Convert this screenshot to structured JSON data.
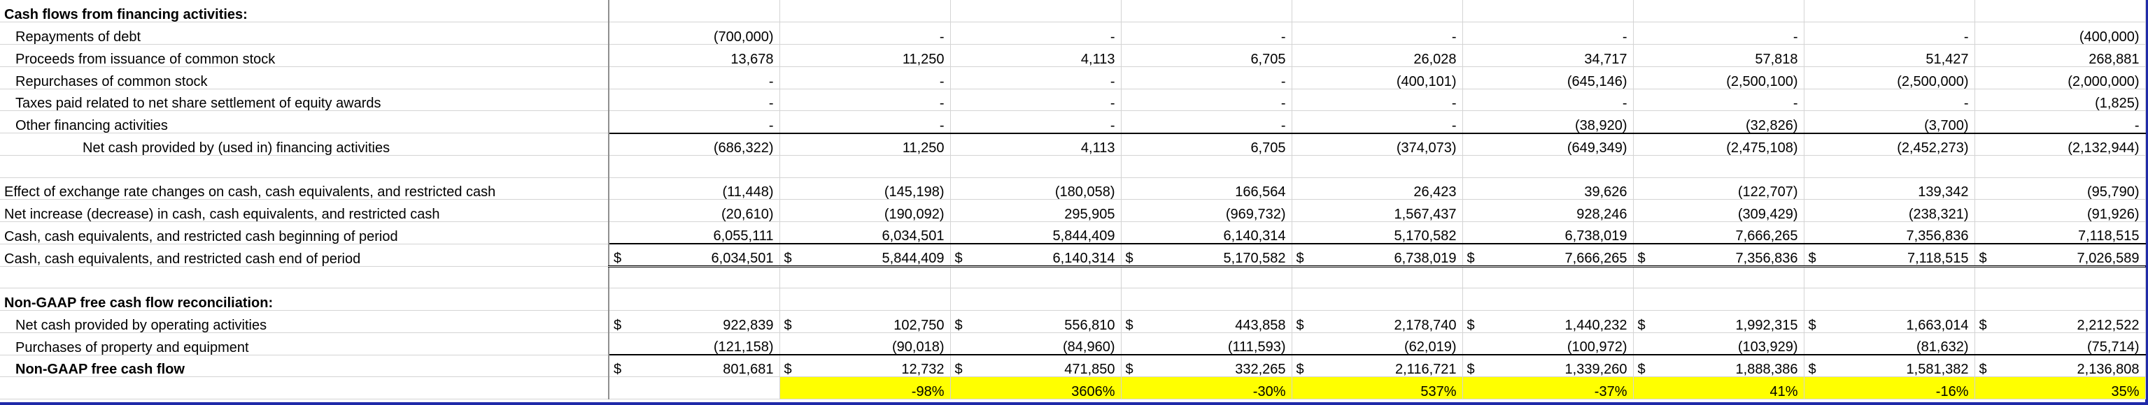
{
  "highlight_color": "#ffff00",
  "rows": [
    {
      "label": "Cash flows from financing activities:",
      "style": "bold",
      "values": []
    },
    {
      "label": "Repayments of debt",
      "style": "ind1",
      "values": [
        "(700,000)",
        "-",
        "-",
        "-",
        "-",
        "-",
        "-",
        "-",
        "(400,000)"
      ]
    },
    {
      "label": "Proceeds from issuance of common stock",
      "style": "ind1",
      "values": [
        "13,678",
        "11,250",
        "4,113",
        "6,705",
        "26,028",
        "34,717",
        "57,818",
        "51,427",
        "268,881"
      ]
    },
    {
      "label": "Repurchases of common stock",
      "style": "ind1",
      "values": [
        "-",
        "-",
        "-",
        "-",
        "(400,101)",
        "(645,146)",
        "(2,500,100)",
        "(2,500,000)",
        "(2,000,000)"
      ]
    },
    {
      "label": "Taxes paid related to net share settlement of equity awards",
      "style": "ind1",
      "values": [
        "-",
        "-",
        "-",
        "-",
        "-",
        "-",
        "-",
        "-",
        "(1,825)"
      ]
    },
    {
      "label": "Other financing activities",
      "style": "ind1",
      "values": [
        "-",
        "-",
        "-",
        "-",
        "-",
        "(38,920)",
        "(32,826)",
        "(3,700)",
        "-"
      ]
    },
    {
      "label": "Net cash provided by (used in) financing activities",
      "style": "ind2",
      "rule": "top",
      "values": [
        "(686,322)",
        "11,250",
        "4,113",
        "6,705",
        "(374,073)",
        "(649,349)",
        "(2,475,108)",
        "(2,452,273)",
        "(2,132,944)"
      ]
    },
    {
      "label": "",
      "style": "blank",
      "values": []
    },
    {
      "label": "Effect of exchange rate changes on cash, cash equivalents, and restricted cash",
      "style": "plain",
      "values": [
        "(11,448)",
        "(145,198)",
        "(180,058)",
        "166,564",
        "26,423",
        "39,626",
        "(122,707)",
        "139,342",
        "(95,790)"
      ]
    },
    {
      "label": "Net increase (decrease) in cash, cash equivalents, and restricted cash",
      "style": "plain",
      "values": [
        "(20,610)",
        "(190,092)",
        "295,905",
        "(969,732)",
        "1,567,437",
        "928,246",
        "(309,429)",
        "(238,321)",
        "(91,926)"
      ]
    },
    {
      "label": "Cash, cash equivalents, and restricted cash beginning of period",
      "style": "plain",
      "values": [
        "6,055,111",
        "6,034,501",
        "5,844,409",
        "6,140,314",
        "5,170,582",
        "6,738,019",
        "7,666,265",
        "7,356,836",
        "7,118,515"
      ]
    },
    {
      "label": "Cash, cash equivalents, and restricted cash end of period",
      "style": "plain",
      "rule": "both",
      "symbols": [
        "$",
        "$",
        "$",
        "$",
        "$",
        "$",
        "$",
        "$",
        "$"
      ],
      "values": [
        "6,034,501",
        "5,844,409",
        "6,140,314",
        "5,170,582",
        "6,738,019",
        "7,666,265",
        "7,356,836",
        "7,118,515",
        "7,026,589"
      ]
    },
    {
      "label": "",
      "style": "blank",
      "values": []
    },
    {
      "label": "Non-GAAP free cash flow reconciliation:",
      "style": "bold",
      "values": []
    },
    {
      "label": "Net cash provided by operating activities",
      "style": "ind1",
      "symbols": [
        "$",
        "$",
        "$",
        "$",
        "$",
        "$",
        "$",
        "$",
        "$"
      ],
      "values": [
        "922,839",
        "102,750",
        "556,810",
        "443,858",
        "2,178,740",
        "1,440,232",
        "1,992,315",
        "1,663,014",
        "2,212,522"
      ]
    },
    {
      "label": "Purchases of property and equipment",
      "style": "ind1",
      "values": [
        "(121,158)",
        "(90,018)",
        "(84,960)",
        "(111,593)",
        "(62,019)",
        "(100,972)",
        "(103,929)",
        "(81,632)",
        "(75,714)"
      ]
    },
    {
      "label": "Non-GAAP free cash flow",
      "style": "ind1 bold",
      "rule": "top",
      "symbols": [
        "$",
        "$",
        "$",
        "$",
        "$",
        "$",
        "$",
        "$",
        "$"
      ],
      "values": [
        "801,681",
        "12,732",
        "471,850",
        "332,265",
        "2,116,721",
        "1,339,260",
        "1,888,386",
        "1,581,382",
        "2,136,808"
      ]
    },
    {
      "label": "",
      "style": "blank",
      "highlight": true,
      "values": [
        "",
        "-98%",
        "3606%",
        "-30%",
        "537%",
        "-37%",
        "41%",
        "-16%",
        "35%"
      ]
    }
  ]
}
